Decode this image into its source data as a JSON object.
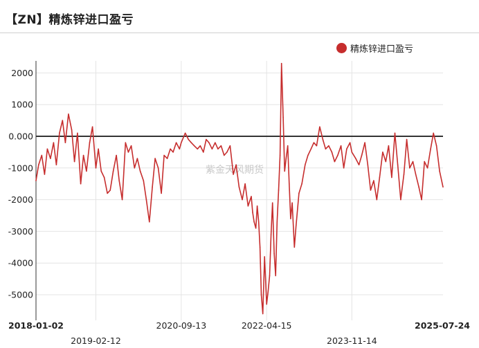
{
  "chart_data": {
    "type": "line",
    "title": "【ZN】精炼锌进口盈亏",
    "legend": "精炼锌进口盈亏",
    "legend_position": "top-right",
    "watermark": "紫金天风期货",
    "color": "#c62d2d",
    "grid": true,
    "ylim": [
      -5800,
      2400
    ],
    "y_ticks": [
      "2000",
      "1000",
      "0.000",
      "-1000",
      "-2000",
      "-3000",
      "-4000",
      "-5000"
    ],
    "x_tick_labels": [
      {
        "label": "2018-01-02",
        "bold": true
      },
      {
        "label": "2019-02-12",
        "bold": false
      },
      {
        "label": "2020-09-13",
        "bold": false
      },
      {
        "label": "2022-04-15",
        "bold": false
      },
      {
        "label": "2023-11-14",
        "bold": false
      },
      {
        "label": "2025-07-24",
        "bold": true
      }
    ],
    "series": [
      {
        "name": "精炼锌进口盈亏",
        "x": [
          "2018-01-02",
          "2018-01-20",
          "2018-02-10",
          "2018-03-01",
          "2018-03-20",
          "2018-04-10",
          "2018-05-01",
          "2018-05-20",
          "2018-06-10",
          "2018-07-01",
          "2018-07-20",
          "2018-08-10",
          "2018-09-01",
          "2018-09-20",
          "2018-10-10",
          "2018-11-01",
          "2018-11-20",
          "2018-12-10",
          "2019-01-01",
          "2019-01-20",
          "2019-02-12",
          "2019-03-01",
          "2019-03-20",
          "2019-04-10",
          "2019-05-01",
          "2019-05-20",
          "2019-06-10",
          "2019-07-01",
          "2019-07-20",
          "2019-08-10",
          "2019-09-01",
          "2019-09-20",
          "2019-10-10",
          "2019-11-01",
          "2019-11-20",
          "2019-12-10",
          "2020-01-01",
          "2020-01-20",
          "2020-02-10",
          "2020-03-01",
          "2020-03-20",
          "2020-04-10",
          "2020-05-01",
          "2020-05-20",
          "2020-06-10",
          "2020-07-01",
          "2020-07-20",
          "2020-08-10",
          "2020-09-01",
          "2020-09-13",
          "2020-10-10",
          "2020-11-01",
          "2020-11-20",
          "2020-12-10",
          "2021-01-01",
          "2021-01-20",
          "2021-02-10",
          "2021-03-01",
          "2021-03-20",
          "2021-04-10",
          "2021-05-01",
          "2021-05-20",
          "2021-06-10",
          "2021-07-01",
          "2021-07-20",
          "2021-08-10",
          "2021-09-01",
          "2021-09-20",
          "2021-10-10",
          "2021-11-01",
          "2021-11-20",
          "2021-12-10",
          "2022-01-01",
          "2022-01-10",
          "2022-01-20",
          "2022-02-01",
          "2022-02-10",
          "2022-02-20",
          "2022-03-01",
          "2022-03-10",
          "2022-03-20",
          "2022-04-01",
          "2022-04-15",
          "2022-04-25",
          "2022-05-05",
          "2022-05-15",
          "2022-05-25",
          "2022-06-05",
          "2022-06-15",
          "2022-06-25",
          "2022-07-05",
          "2022-07-15",
          "2022-07-25",
          "2022-08-05",
          "2022-08-15",
          "2022-08-25",
          "2022-09-05",
          "2022-09-15",
          "2022-09-25",
          "2022-10-05",
          "2022-10-20",
          "2022-11-01",
          "2022-11-20",
          "2022-12-10",
          "2023-01-01",
          "2023-01-20",
          "2023-02-10",
          "2023-03-01",
          "2023-03-20",
          "2023-04-10",
          "2023-05-01",
          "2023-05-20",
          "2023-06-10",
          "2023-07-01",
          "2023-07-20",
          "2023-08-10",
          "2023-09-01",
          "2023-09-20",
          "2023-10-10",
          "2023-11-01",
          "2023-11-14",
          "2023-12-10",
          "2024-01-01",
          "2024-01-20",
          "2024-02-10",
          "2024-03-01",
          "2024-03-20",
          "2024-04-10",
          "2024-05-01",
          "2024-05-20",
          "2024-06-10",
          "2024-07-01",
          "2024-07-20",
          "2024-08-10",
          "2024-09-01",
          "2024-09-20",
          "2024-10-10",
          "2024-11-01",
          "2024-11-20",
          "2024-12-10",
          "2025-01-01",
          "2025-01-20",
          "2025-02-10",
          "2025-03-01",
          "2025-03-20",
          "2025-04-10",
          "2025-05-01",
          "2025-05-20",
          "2025-06-10",
          "2025-07-01",
          "2025-07-24"
        ],
        "y": [
          -1400,
          -900,
          -600,
          -1200,
          -400,
          -700,
          -200,
          -900,
          100,
          500,
          -200,
          700,
          200,
          -800,
          100,
          -1500,
          -600,
          -1100,
          -200,
          300,
          -1000,
          -400,
          -1100,
          -1300,
          -1800,
          -1700,
          -1100,
          -600,
          -1400,
          -2000,
          -200,
          -500,
          -300,
          -1000,
          -700,
          -1100,
          -1400,
          -2000,
          -2700,
          -1600,
          -700,
          -1000,
          -1800,
          -600,
          -700,
          -400,
          -500,
          -200,
          -400,
          -200,
          100,
          -100,
          -200,
          -300,
          -400,
          -300,
          -500,
          -100,
          -200,
          -400,
          -200,
          -400,
          -300,
          -600,
          -500,
          -300,
          -1200,
          -900,
          -1600,
          -2000,
          -1500,
          -2200,
          -1900,
          -2400,
          -2700,
          -2900,
          -2200,
          -2700,
          -3500,
          -5000,
          -5600,
          -3800,
          -5300,
          -4900,
          -4400,
          -3100,
          -2100,
          -3700,
          -4400,
          -2700,
          -1700,
          -600,
          2300,
          600,
          -1100,
          -700,
          -300,
          -1500,
          -2600,
          -2100,
          -3500,
          -2800,
          -1800,
          -1500,
          -900,
          -600,
          -400,
          -200,
          -300,
          300,
          -100,
          -400,
          -300,
          -500,
          -800,
          -600,
          -300,
          -1000,
          -400,
          -200,
          -500,
          -700,
          -900,
          -600,
          -200,
          -900,
          -1700,
          -1400,
          -2000,
          -1300,
          -500,
          -800,
          -300,
          -1300,
          100,
          -900,
          -2000,
          -1200,
          -100,
          -1000,
          -800,
          -1200,
          -1600,
          -2000,
          -800,
          -1000,
          -400,
          100,
          -300,
          -1100,
          -1600
        ]
      }
    ]
  }
}
